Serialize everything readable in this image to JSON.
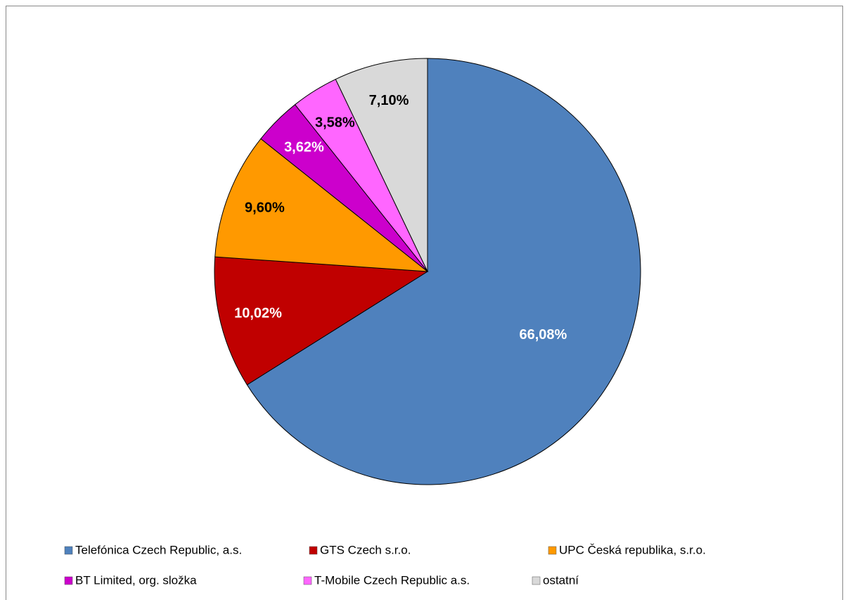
{
  "chart_data": {
    "type": "pie",
    "categories": [
      "Telefónica Czech Republic, a.s.",
      "GTS Czech s.r.o.",
      "UPC Česká republika, s.r.o.",
      "BT Limited, org. složka",
      "T-Mobile Czech Republic a.s.",
      "ostatní"
    ],
    "values": [
      66.08,
      10.02,
      9.6,
      3.62,
      3.58,
      7.1
    ],
    "value_labels": [
      "66,08%",
      "10,02%",
      "9,60%",
      "3,62%",
      "3,58%",
      "7,10%"
    ],
    "colors": [
      "#4f81bd",
      "#c00000",
      "#ff9900",
      "#cc00cc",
      "#ff66ff",
      "#d9d9d9"
    ],
    "legend": "bottom"
  }
}
